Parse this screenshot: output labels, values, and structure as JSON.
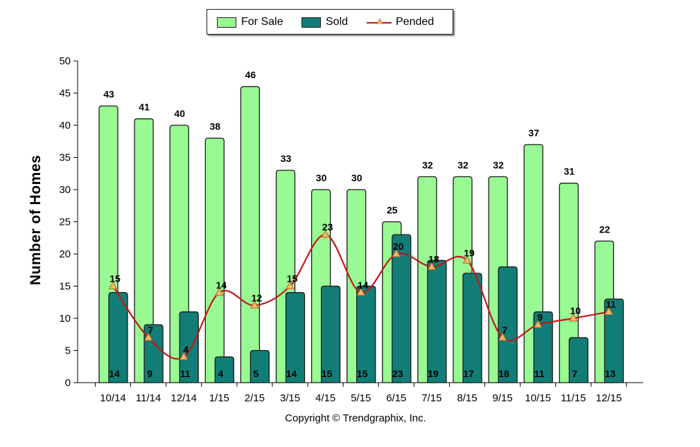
{
  "legend": {
    "for_sale": "For Sale",
    "sold": "Sold",
    "pended": "Pended"
  },
  "copyright": "Copyright © Trendgraphix, Inc.",
  "colors": {
    "for_sale_fill": "#99f993",
    "sold_fill": "#127d77",
    "pended_line": "#c01818",
    "pended_marker": "#f5b867",
    "bar_border": "#1a1a1a"
  },
  "chart_data": {
    "type": "bar",
    "title": "",
    "xlabel": "",
    "ylabel": "Number of Homes",
    "ylim": [
      0,
      50
    ],
    "yticks": [
      0,
      5,
      10,
      15,
      20,
      25,
      30,
      35,
      40,
      45,
      50
    ],
    "grid": false,
    "legend_position": "top-center",
    "categories": [
      "10/14",
      "11/14",
      "12/14",
      "1/15",
      "2/15",
      "3/15",
      "4/15",
      "5/15",
      "6/15",
      "7/15",
      "8/15",
      "9/15",
      "10/15",
      "11/15",
      "12/15"
    ],
    "series": [
      {
        "name": "For Sale",
        "type": "bar",
        "values": [
          43,
          41,
          40,
          38,
          46,
          33,
          30,
          30,
          25,
          32,
          32,
          32,
          37,
          31,
          22
        ]
      },
      {
        "name": "Sold",
        "type": "bar",
        "values": [
          14,
          9,
          11,
          4,
          5,
          14,
          15,
          15,
          23,
          19,
          17,
          18,
          11,
          7,
          13
        ]
      },
      {
        "name": "Pended",
        "type": "line",
        "values": [
          15,
          7,
          4,
          14,
          12,
          15,
          23,
          14,
          20,
          18,
          19,
          7,
          9,
          10,
          11
        ]
      }
    ]
  }
}
